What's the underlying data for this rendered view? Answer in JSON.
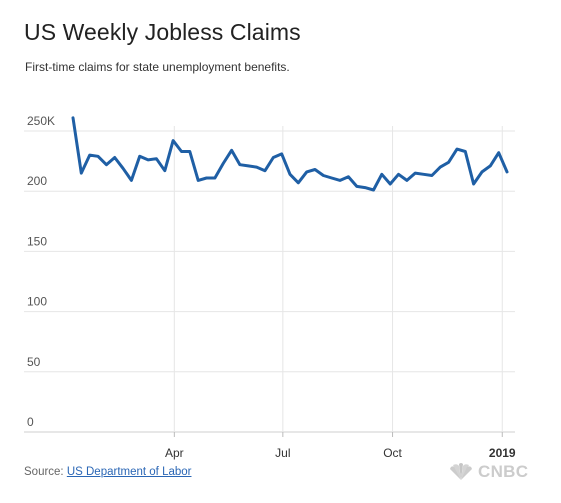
{
  "header": {
    "title": "US Weekly Jobless Claims",
    "subtitle": "First-time claims for state unemployment benefits."
  },
  "footer": {
    "source_prefix": "Source: ",
    "source_link": "US Department of Labor",
    "logo_text": "CNBC"
  },
  "colors": {
    "line": "#1f5fa5",
    "grid": "#e6e6e6",
    "tick_text": "#555555"
  },
  "chart_data": {
    "type": "line",
    "title": "US Weekly Jobless Claims",
    "subtitle": "First-time claims for state unemployment benefits.",
    "xlabel": "",
    "ylabel": "",
    "ylim": [
      0,
      250
    ],
    "yticks": [
      0,
      50,
      100,
      150,
      200,
      250
    ],
    "ytick_labels": [
      "0",
      "50",
      "100",
      "150",
      "200",
      "250K"
    ],
    "xlim": [
      "2018-01-01",
      "2019-01-10"
    ],
    "xticks": [
      "2018-04-01",
      "2018-07-01",
      "2018-10-01",
      "2019-01-01"
    ],
    "xtick_labels": [
      "Apr",
      "Jul",
      "Oct",
      "2019"
    ],
    "grid": true,
    "legend": "none",
    "x": [
      "2018-01-06",
      "2018-01-13",
      "2018-01-20",
      "2018-01-27",
      "2018-02-03",
      "2018-02-10",
      "2018-02-17",
      "2018-02-24",
      "2018-03-03",
      "2018-03-10",
      "2018-03-17",
      "2018-03-24",
      "2018-03-31",
      "2018-04-07",
      "2018-04-14",
      "2018-04-21",
      "2018-04-28",
      "2018-05-05",
      "2018-05-12",
      "2018-05-19",
      "2018-05-26",
      "2018-06-02",
      "2018-06-09",
      "2018-06-16",
      "2018-06-23",
      "2018-06-30",
      "2018-07-07",
      "2018-07-14",
      "2018-07-21",
      "2018-07-28",
      "2018-08-04",
      "2018-08-11",
      "2018-08-18",
      "2018-08-25",
      "2018-09-01",
      "2018-09-08",
      "2018-09-15",
      "2018-09-22",
      "2018-09-29",
      "2018-10-06",
      "2018-10-13",
      "2018-10-20",
      "2018-10-27",
      "2018-11-03",
      "2018-11-10",
      "2018-11-17",
      "2018-11-24",
      "2018-12-01",
      "2018-12-08",
      "2018-12-15",
      "2018-12-22",
      "2018-12-29",
      "2019-01-05"
    ],
    "series": [
      {
        "values": [
          261,
          215,
          230,
          229,
          222,
          228,
          219,
          209,
          229,
          226,
          227,
          217,
          242,
          233,
          233,
          209,
          211,
          211,
          223,
          234,
          222,
          221,
          220,
          217,
          228,
          231,
          214,
          207,
          216,
          218,
          213,
          211,
          209,
          212,
          204,
          203,
          201,
          214,
          206,
          214,
          209,
          215,
          214,
          213,
          220,
          224,
          235,
          233,
          206,
          216,
          221,
          232,
          216
        ]
      }
    ]
  }
}
